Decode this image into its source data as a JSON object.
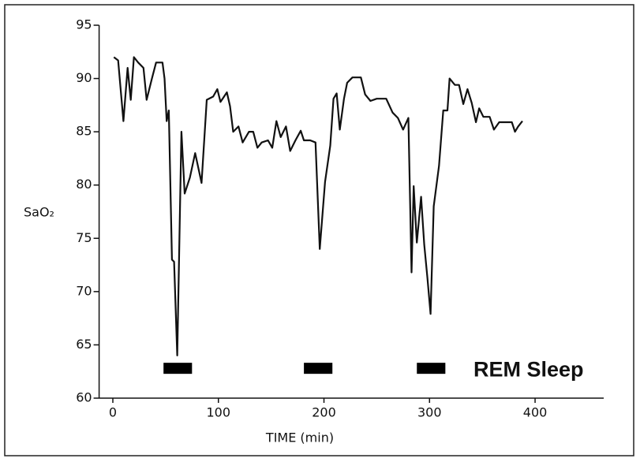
{
  "chart_data": {
    "type": "line",
    "x_label": "TIME (min)",
    "y_label": "SaO₂",
    "xlim": [
      -13,
      465
    ],
    "ylim": [
      60,
      95
    ],
    "xticks": [
      0,
      100,
      200,
      300,
      400
    ],
    "yticks": [
      60,
      65,
      70,
      75,
      80,
      85,
      90,
      95
    ],
    "grid": false,
    "series": [
      {
        "color": "#111111",
        "x": [
          1,
          5,
          10,
          14,
          17,
          20,
          24,
          29,
          32,
          37,
          41,
          47,
          49,
          51,
          53,
          56,
          58,
          61,
          65,
          68,
          73,
          78,
          84,
          89,
          95,
          99,
          102,
          108,
          111,
          114,
          119,
          123,
          129,
          133,
          137,
          141,
          147,
          151,
          155,
          159,
          164,
          168,
          173,
          178,
          181,
          187,
          192,
          196,
          201,
          206,
          209,
          212,
          215,
          219,
          222,
          227,
          235,
          239,
          244,
          250,
          259,
          265,
          270,
          275,
          280,
          283,
          285,
          288,
          292,
          295,
          298,
          301,
          304,
          309,
          313,
          317,
          319,
          324,
          328,
          332,
          336,
          340,
          344,
          347,
          351,
          357,
          361,
          366,
          378,
          381,
          384,
          388
        ],
        "values": [
          92,
          91.7,
          86,
          91,
          88,
          92,
          91.5,
          91,
          88,
          90,
          91.5,
          91.5,
          90,
          86,
          87,
          73,
          72.8,
          64,
          85,
          79.2,
          80.7,
          83,
          80.2,
          88,
          88.3,
          89,
          87.8,
          88.7,
          87.4,
          85,
          85.5,
          84,
          85,
          85,
          83.5,
          84,
          84.2,
          83.5,
          86,
          84.5,
          85.5,
          83.2,
          84.2,
          85.1,
          84.2,
          84.2,
          84,
          74,
          80.3,
          83.7,
          88.1,
          88.6,
          85.2,
          88.1,
          89.6,
          90.1,
          90.1,
          88.5,
          87.9,
          88.1,
          88.1,
          86.8,
          86.3,
          85.2,
          86.3,
          71.8,
          79.9,
          74.6,
          78.9,
          74.4,
          71.3,
          67.9,
          78,
          81.8,
          87,
          87,
          90,
          89.4,
          89.4,
          87.6,
          89,
          87.7,
          85.9,
          87.2,
          86.4,
          86.4,
          85.2,
          85.9,
          85.9,
          85,
          85.5,
          86
        ]
      }
    ],
    "annotation": {
      "text": "REM Sleep",
      "level": 62.8,
      "periods": [
        [
          48,
          75
        ],
        [
          181,
          208
        ],
        [
          288,
          315
        ]
      ]
    }
  }
}
